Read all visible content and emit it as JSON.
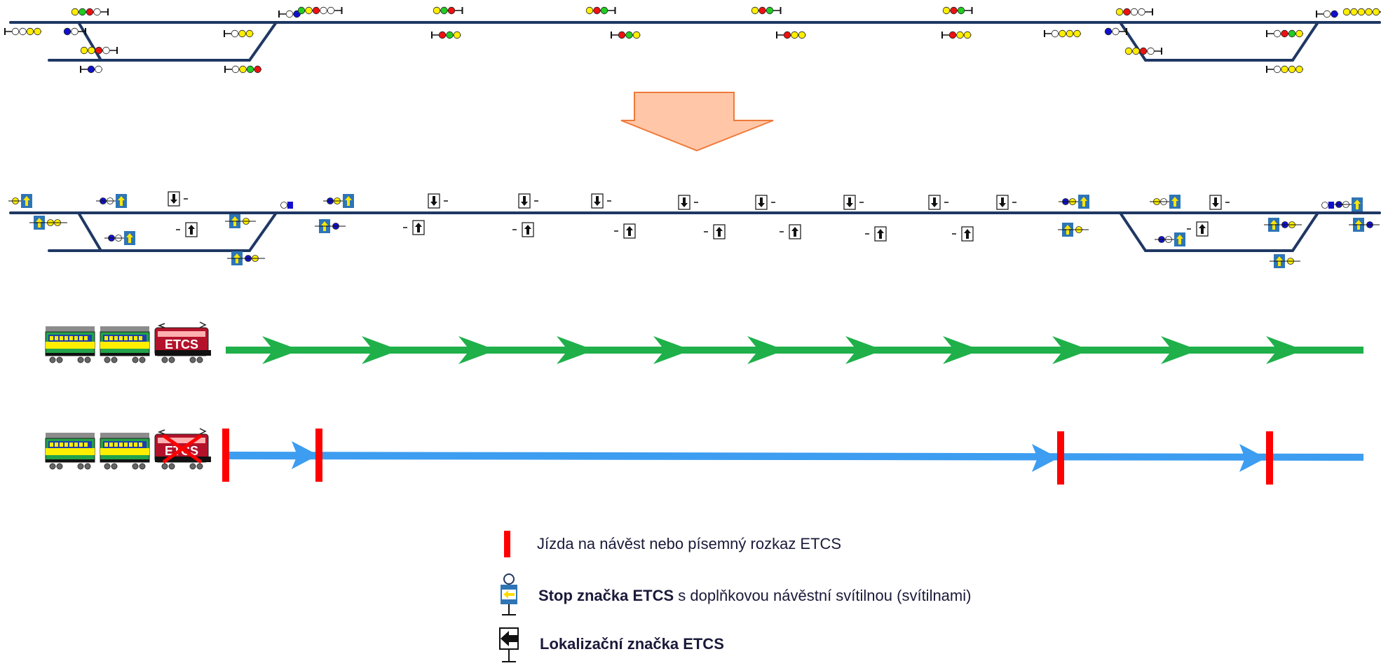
{
  "colors": {
    "track": "#1f3864",
    "arrow_fill": "#ffc7a8",
    "arrow_stroke": "#f07a3a",
    "green_path": "#1fb04a",
    "blue_path": "#3d9df0",
    "stop_bar": "#ff0000",
    "lamp_yellow": "#ffee00",
    "lamp_green": "#22cc22",
    "lamp_red": "#ee1111",
    "lamp_blue": "#1010cc",
    "lamp_white": "#ffffff",
    "etcs_panel": "#2e75b6"
  },
  "icons": {
    "main_signal": "signal-lamps-icon",
    "shunt_signal": "shunt-signal-icon",
    "etcs_stop_marker": "etcs-stop-marker-icon",
    "etcs_location_marker": "etcs-location-marker-icon",
    "train": "train-icon",
    "transform_arrow": "down-arrow-icon"
  },
  "trains": {
    "etcs_label": "ETCS",
    "disabled_label": "ETCS"
  },
  "legend": {
    "items": [
      {
        "icon": "red-bar-icon",
        "text_plain": "Jízda na návěst nebo písemný rozkaz ETCS",
        "text_bold": ""
      },
      {
        "icon": "etcs-stop-marker-icon",
        "text_bold": "Stop značka ETCS",
        "text_plain": " s doplňkovou návěstní svítilnou (svítilnami)"
      },
      {
        "icon": "etcs-location-marker-icon",
        "text_bold": "Lokalizační značka ETCS",
        "text_plain": ""
      }
    ]
  }
}
